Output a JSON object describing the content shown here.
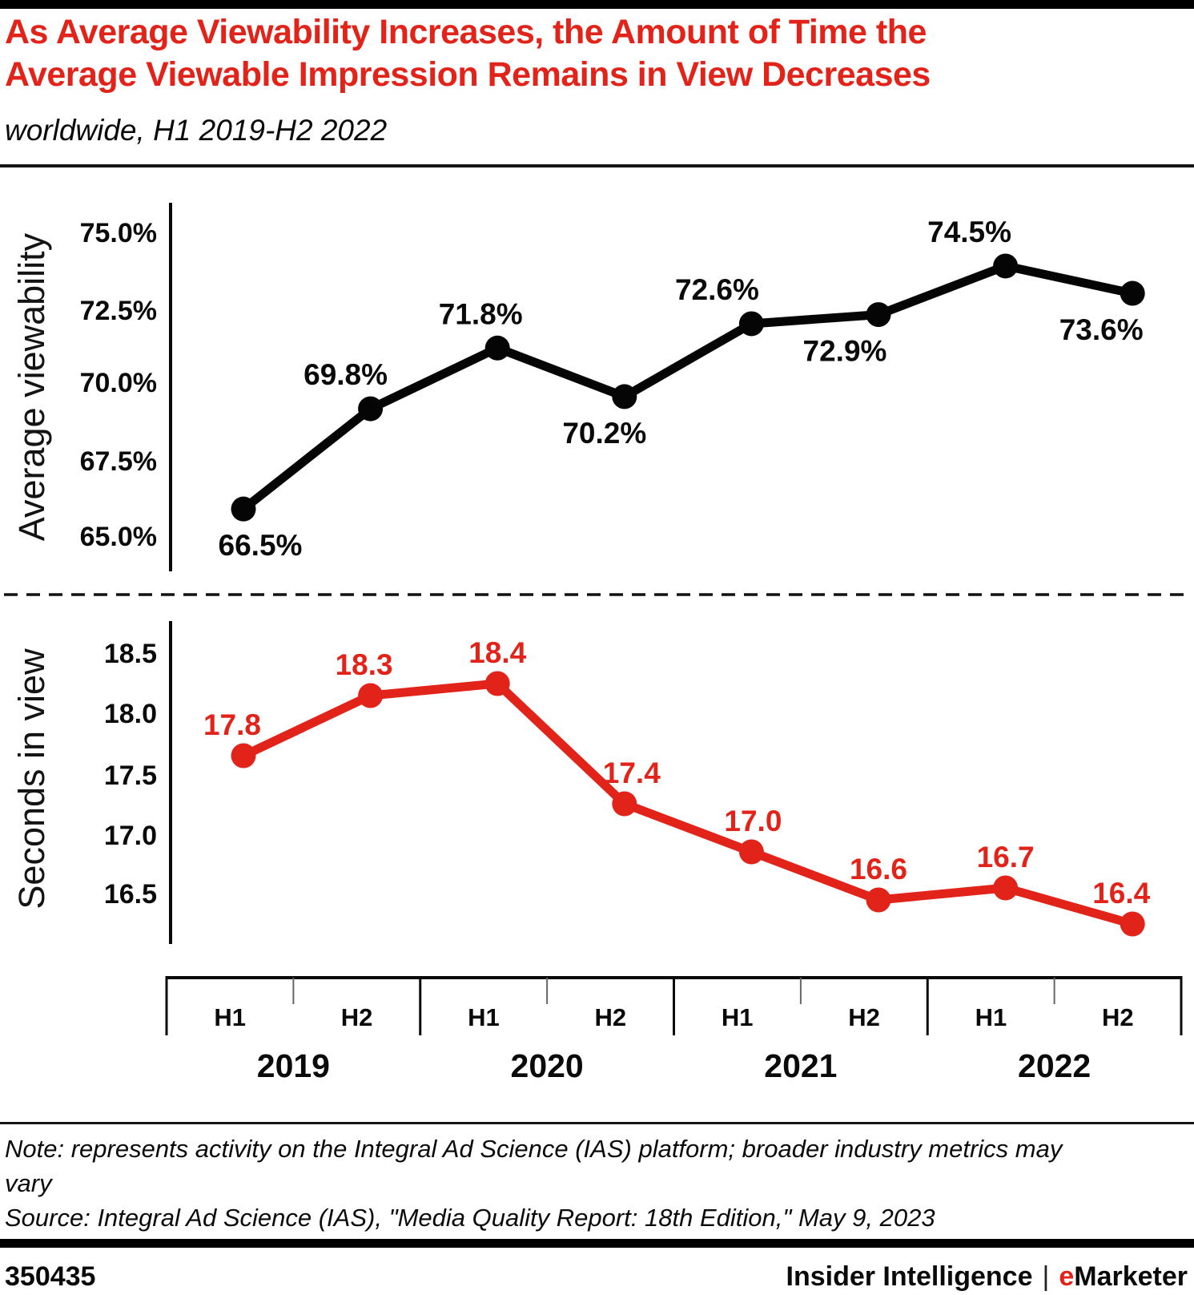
{
  "page": {
    "title_line1": "As Average Viewability Increases, the Amount of Time the",
    "title_line2": "Average Viewable Impression Remains in View Decreases",
    "subtitle": "worldwide, H1 2019-H2 2022",
    "note": "Note: represents activity on the Integral Ad Science (IAS) platform; broader industry metrics may vary",
    "source": "Source: Integral Ad Science (IAS), \"Media Quality Report: 18th Edition,\" May 9, 2023",
    "chart_id": "350435",
    "brand": {
      "left": "Insider Intelligence",
      "separator": "|",
      "e": "e",
      "rest": "Marketer"
    },
    "colors": {
      "accent_red": "#e2231a",
      "series_black": "#050505"
    }
  },
  "x_axis": {
    "period_labels": [
      "H1",
      "H2"
    ],
    "year_labels": [
      "2019",
      "2020",
      "2021",
      "2022"
    ]
  },
  "chart_data": [
    {
      "type": "line",
      "name": "average-viewability",
      "ylabel": "Average viewability",
      "categories": [
        "H1 2019",
        "H2 2019",
        "H1 2020",
        "H2 2020",
        "H1 2021",
        "H2 2021",
        "H1 2022",
        "H2 2022"
      ],
      "values": [
        66.5,
        69.8,
        71.8,
        70.2,
        72.6,
        72.9,
        74.5,
        73.6
      ],
      "point_labels": [
        "66.5%",
        "69.8%",
        "71.8%",
        "70.2%",
        "72.6%",
        "72.9%",
        "74.5%",
        "73.6%"
      ],
      "yticks": [
        75.0,
        72.5,
        70.0,
        67.5,
        65.0
      ],
      "ytick_labels": [
        "75.0%",
        "72.5%",
        "70.0%",
        "67.5%",
        "65.0%"
      ],
      "ylim": [
        63.8,
        76.1
      ],
      "grid": false,
      "line_color": "#050505",
      "label_color": "#0a0a0a",
      "label_position": [
        "below",
        "above",
        "above",
        "below",
        "above",
        "below",
        "above",
        "below"
      ],
      "label_dx": [
        21,
        -31,
        -21,
        -25,
        -43,
        -42,
        -45,
        -39
      ]
    },
    {
      "type": "line",
      "name": "seconds-in-view",
      "ylabel": "Seconds in view",
      "categories": [
        "H1 2019",
        "H2 2019",
        "H1 2020",
        "H2 2020",
        "H1 2021",
        "H2 2021",
        "H1 2022",
        "H2 2022"
      ],
      "values": [
        17.8,
        18.3,
        18.4,
        17.4,
        17.0,
        16.6,
        16.7,
        16.4
      ],
      "point_labels": [
        "17.8",
        "18.3",
        "18.4",
        "17.4",
        "17.0",
        "16.6",
        "16.7",
        "16.4"
      ],
      "yticks": [
        18.5,
        18.0,
        17.5,
        17.0,
        16.5
      ],
      "ytick_labels": [
        "18.5",
        "18.0",
        "17.5",
        "17.0",
        "16.5"
      ],
      "ylim": [
        16.0,
        18.8
      ],
      "grid": false,
      "line_color": "#e2231a",
      "label_color": "#e2231a",
      "label_position": [
        "above",
        "above",
        "above",
        "above",
        "above",
        "above",
        "above",
        "above"
      ],
      "label_dx": [
        -14,
        -8,
        0,
        9,
        2,
        0,
        0,
        -14
      ]
    }
  ]
}
